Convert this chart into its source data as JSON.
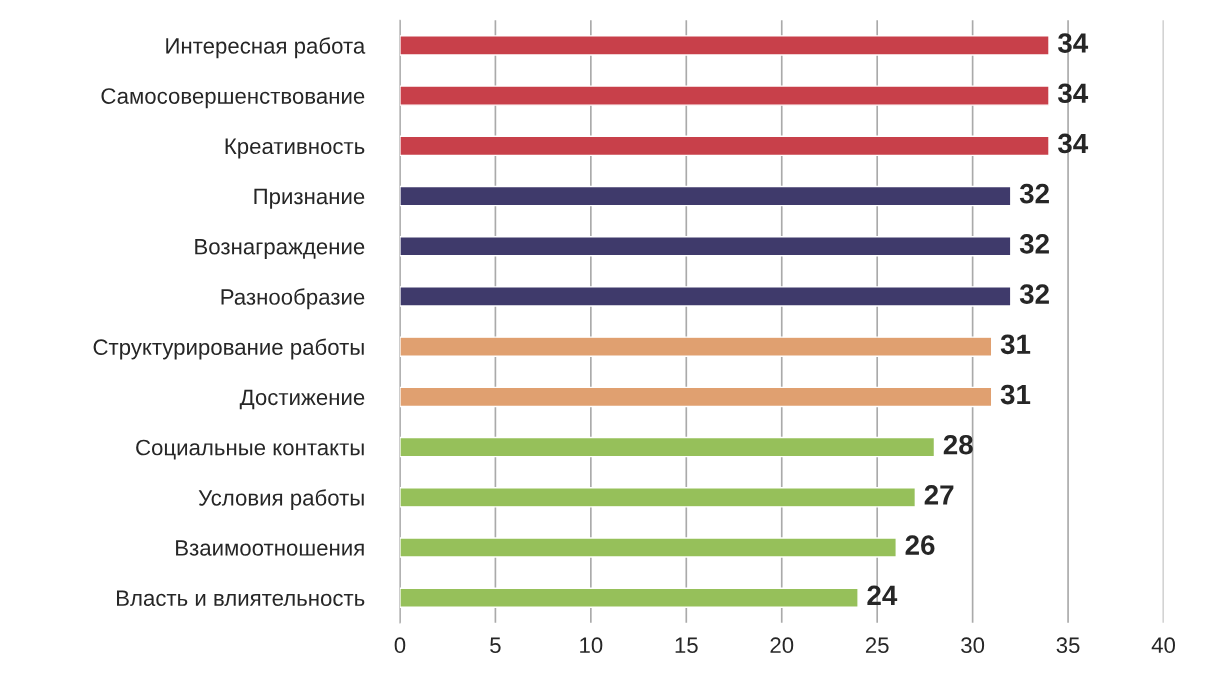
{
  "chart_data": {
    "type": "bar",
    "orientation": "horizontal",
    "categories": [
      "Интересная работа",
      "Самосовершенствование",
      "Креативность",
      "Признание",
      "Вознаграждение",
      "Разнообразие",
      "Структурирование работы",
      "Достижение",
      "Социальные контакты",
      "Условия работы",
      "Взаимоотношения",
      "Власть и влиятельность"
    ],
    "values": [
      34,
      34,
      34,
      32,
      32,
      32,
      31,
      31,
      28,
      27,
      26,
      24
    ],
    "colors": [
      "#c8404a",
      "#c8404a",
      "#c8404a",
      "#3f3a6b",
      "#3f3a6b",
      "#3f3a6b",
      "#e0a070",
      "#e0a070",
      "#96c05a",
      "#96c05a",
      "#96c05a",
      "#96c05a"
    ],
    "xlim": [
      0,
      40
    ],
    "xticks": [
      0,
      5,
      10,
      15,
      20,
      25,
      30,
      35,
      40
    ],
    "grid": "x",
    "data_labels": true
  }
}
